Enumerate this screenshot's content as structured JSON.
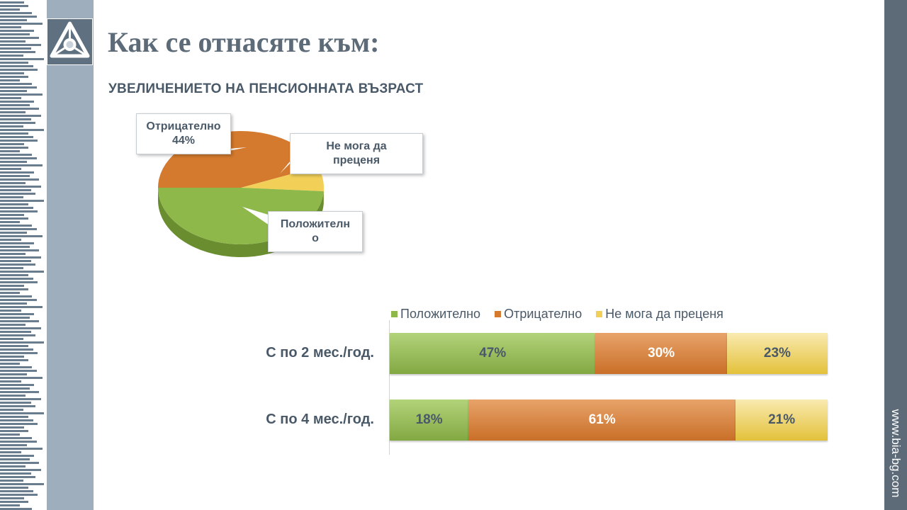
{
  "slide": {
    "title": "Как се отнасяте към:",
    "website": "www.bia-bg.com",
    "logo_icon": "bia-logo-icon"
  },
  "colors": {
    "positive": "#8fb84a",
    "negative": "#d47a2e",
    "undecided": "#f2d058",
    "band": "#5d6b79",
    "text": "#4a5968"
  },
  "chart_data": [
    {
      "type": "pie",
      "title": "УВЕЛИЧЕНИЕТО НА ПЕНСИОННАТА ВЪЗРАСТ",
      "slices": [
        {
          "name": "Отрицателно",
          "value": 44,
          "label_text": "44%"
        },
        {
          "name": "Не мога да преценя",
          "value": 7
        },
        {
          "name": "Положително",
          "value": 49
        }
      ],
      "callouts": {
        "negative": {
          "line1": "Отрицателно",
          "line2": "44%"
        },
        "undecided": {
          "line1": "Не мога да",
          "line2": "преценя"
        },
        "positive": {
          "line1": "Положителн",
          "line2": "о"
        }
      }
    },
    {
      "type": "bar",
      "orientation": "horizontal",
      "stacked": true,
      "percent": true,
      "legend": [
        "Положително",
        "Отрицателно",
        "Не мога да преценя"
      ],
      "legend_position": "top",
      "categories": [
        "С по 2 мес./год.",
        "С по 4 мес./год."
      ],
      "series": [
        {
          "name": "Положително",
          "values": [
            47,
            18
          ],
          "labels": [
            "47%",
            "18%"
          ]
        },
        {
          "name": "Отрицателно",
          "values": [
            30,
            61
          ],
          "labels": [
            "30%",
            "61%"
          ]
        },
        {
          "name": "Не мога да преценя",
          "values": [
            23,
            21
          ],
          "labels": [
            "23%",
            "21%"
          ]
        }
      ]
    }
  ]
}
